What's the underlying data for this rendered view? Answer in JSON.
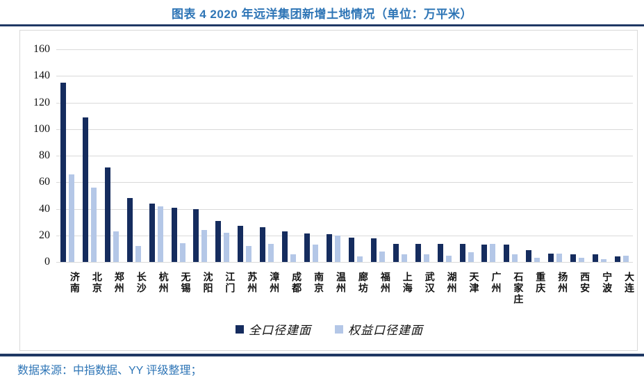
{
  "page": {
    "title": "图表 4 2020 年远洋集团新增土地情况（单位：万平米）",
    "source_note": "数据来源：中指数据、YY 评级整理；"
  },
  "colors": {
    "title_blue": "#2E75B6",
    "rule_navy": "#1F3864",
    "bar_dark_navy": "#152C5E",
    "bar_light_blue": "#B4C7E7",
    "gridline_gray": "#D9D9D9",
    "chart_border_gray": "#D8D8D8",
    "axis_text": "#111111"
  },
  "chart_data": {
    "type": "bar",
    "title": "图表 4 2020 年远洋集团新增土地情况（单位：万平米）",
    "unit": "万平米",
    "categories": [
      "济南",
      "北京",
      "郑州",
      "长沙",
      "杭州",
      "无锡",
      "沈阳",
      "江门",
      "苏州",
      "漳州",
      "成都",
      "南京",
      "温州",
      "廊坊",
      "福州",
      "上海",
      "武汉",
      "湖州",
      "天津",
      "广州",
      "石家庄",
      "重庆",
      "扬州",
      "西安",
      "宁波",
      "大连"
    ],
    "series": [
      {
        "name": "全口径建面",
        "color": "#152C5E",
        "values": [
          135,
          109,
          71,
          48,
          44,
          41,
          40,
          31,
          27,
          26,
          23,
          21.5,
          21,
          18.5,
          18,
          13.5,
          13.5,
          13.5,
          13.5,
          13,
          13,
          9,
          6.5,
          6,
          5.5,
          4
        ]
      },
      {
        "name": "权益口径建面",
        "color": "#B4C7E7",
        "values": [
          66,
          56,
          23,
          12,
          42,
          14,
          24,
          22,
          12,
          13.5,
          5.5,
          13,
          20,
          4,
          8,
          6,
          6,
          4.5,
          7.5,
          13.5,
          6,
          3,
          6.5,
          3,
          2,
          4.5
        ]
      }
    ],
    "xlabel": "",
    "ylabel": "",
    "ylim": [
      0,
      160
    ],
    "yticks": [
      0,
      20,
      40,
      60,
      80,
      100,
      120,
      140,
      160
    ],
    "grid": "horizontal",
    "legend_position": "bottom-center"
  }
}
